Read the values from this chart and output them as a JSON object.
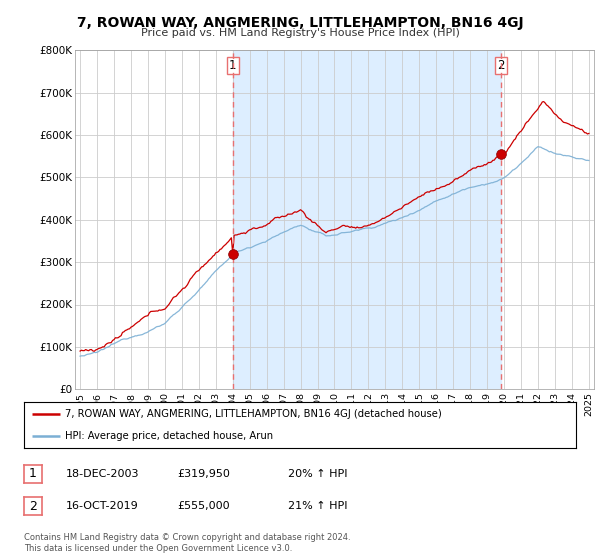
{
  "title": "7, ROWAN WAY, ANGMERING, LITTLEHAMPTON, BN16 4GJ",
  "subtitle": "Price paid vs. HM Land Registry's House Price Index (HPI)",
  "bg_color": "#ffffff",
  "plot_bg_color": "#ffffff",
  "grid_color": "#cccccc",
  "red_line_color": "#cc0000",
  "blue_line_color": "#7bafd4",
  "vline_color": "#e87070",
  "shade_color": "#ddeeff",
  "transaction1_date": "18-DEC-2003",
  "transaction1_price": "£319,950",
  "transaction1_hpi": "20% ↑ HPI",
  "transaction2_date": "16-OCT-2019",
  "transaction2_price": "£555,000",
  "transaction2_hpi": "21% ↑ HPI",
  "legend_line1": "7, ROWAN WAY, ANGMERING, LITTLEHAMPTON, BN16 4GJ (detached house)",
  "legend_line2": "HPI: Average price, detached house, Arun",
  "footnote": "Contains HM Land Registry data © Crown copyright and database right 2024.\nThis data is licensed under the Open Government Licence v3.0.",
  "ylim_min": 0,
  "ylim_max": 800000,
  "yticks": [
    0,
    100000,
    200000,
    300000,
    400000,
    500000,
    600000,
    700000,
    800000
  ],
  "ytick_labels": [
    "£0",
    "£100K",
    "£200K",
    "£300K",
    "£400K",
    "£500K",
    "£600K",
    "£700K",
    "£800K"
  ],
  "vline1_x": 2004.0,
  "vline2_x": 2019.8,
  "marker1_x": 2004.0,
  "marker1_y": 319950,
  "marker2_x": 2019.8,
  "marker2_y": 555000,
  "xmin": 1995,
  "xmax": 2025
}
